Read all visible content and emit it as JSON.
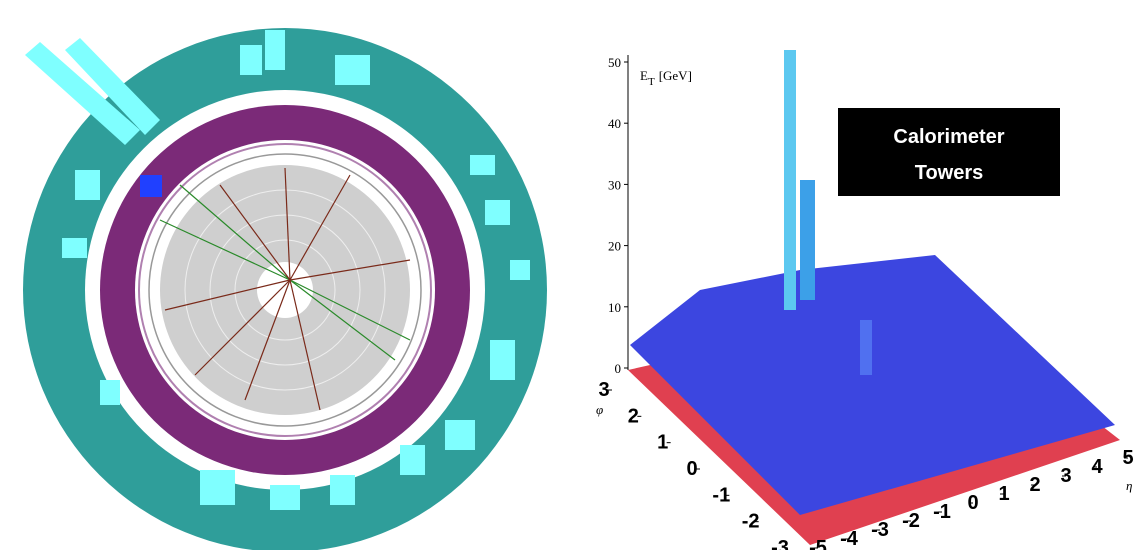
{
  "annotation": {
    "lines": [
      "Calorimeter",
      "Towers"
    ]
  },
  "axes": {
    "z": {
      "label": "E",
      "subscript": "T",
      "unit": "[GeV]",
      "ticks": [
        0,
        10,
        20,
        30,
        40,
        50
      ]
    },
    "phi": {
      "label": "φ",
      "ticks": [
        3,
        2,
        1,
        0,
        -1,
        -2,
        -3
      ]
    },
    "eta": {
      "label": "η",
      "ticks": [
        -5,
        -4,
        -3,
        -2,
        -1,
        0,
        1,
        2,
        3,
        4,
        5
      ]
    }
  }
}
